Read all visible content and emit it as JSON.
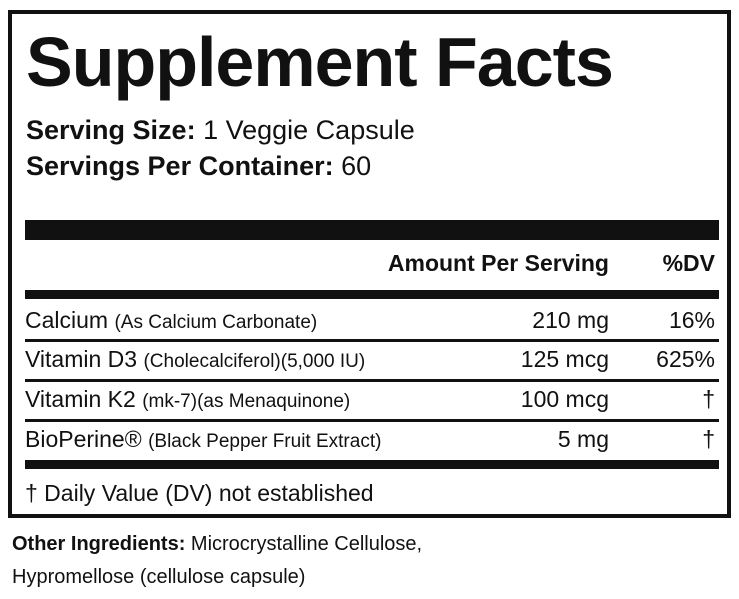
{
  "title": "Supplement Facts",
  "serving_size": {
    "label": "Serving Size:",
    "value": "1 Veggie Capsule"
  },
  "servings_per_container": {
    "label": "Servings Per Container:",
    "value": "60"
  },
  "table": {
    "header": {
      "amount": "Amount Per Serving",
      "dv": "%DV"
    },
    "rows": [
      {
        "name": "Calcium",
        "detail": "(As Calcium Carbonate)",
        "amount": "210 mg",
        "dv": "16%"
      },
      {
        "name": "Vitamin D3",
        "detail": "(Cholecalciferol)(5,000 IU)",
        "amount": "125 mcg",
        "dv": "625%"
      },
      {
        "name": "Vitamin K2",
        "detail": "(mk-7)(as Menaquinone)",
        "amount": "100 mcg",
        "dv": "†"
      },
      {
        "name": "BioPerine®",
        "detail": "(Black Pepper Fruit Extract)",
        "amount": "5 mg",
        "dv": "†"
      }
    ],
    "footnote": "† Daily Value (DV) not established"
  },
  "other_ingredients": {
    "label": "Other Ingredients:",
    "line1": "Microcrystalline Cellulose,",
    "line2": "Hypromellose (cellulose capsule)"
  }
}
